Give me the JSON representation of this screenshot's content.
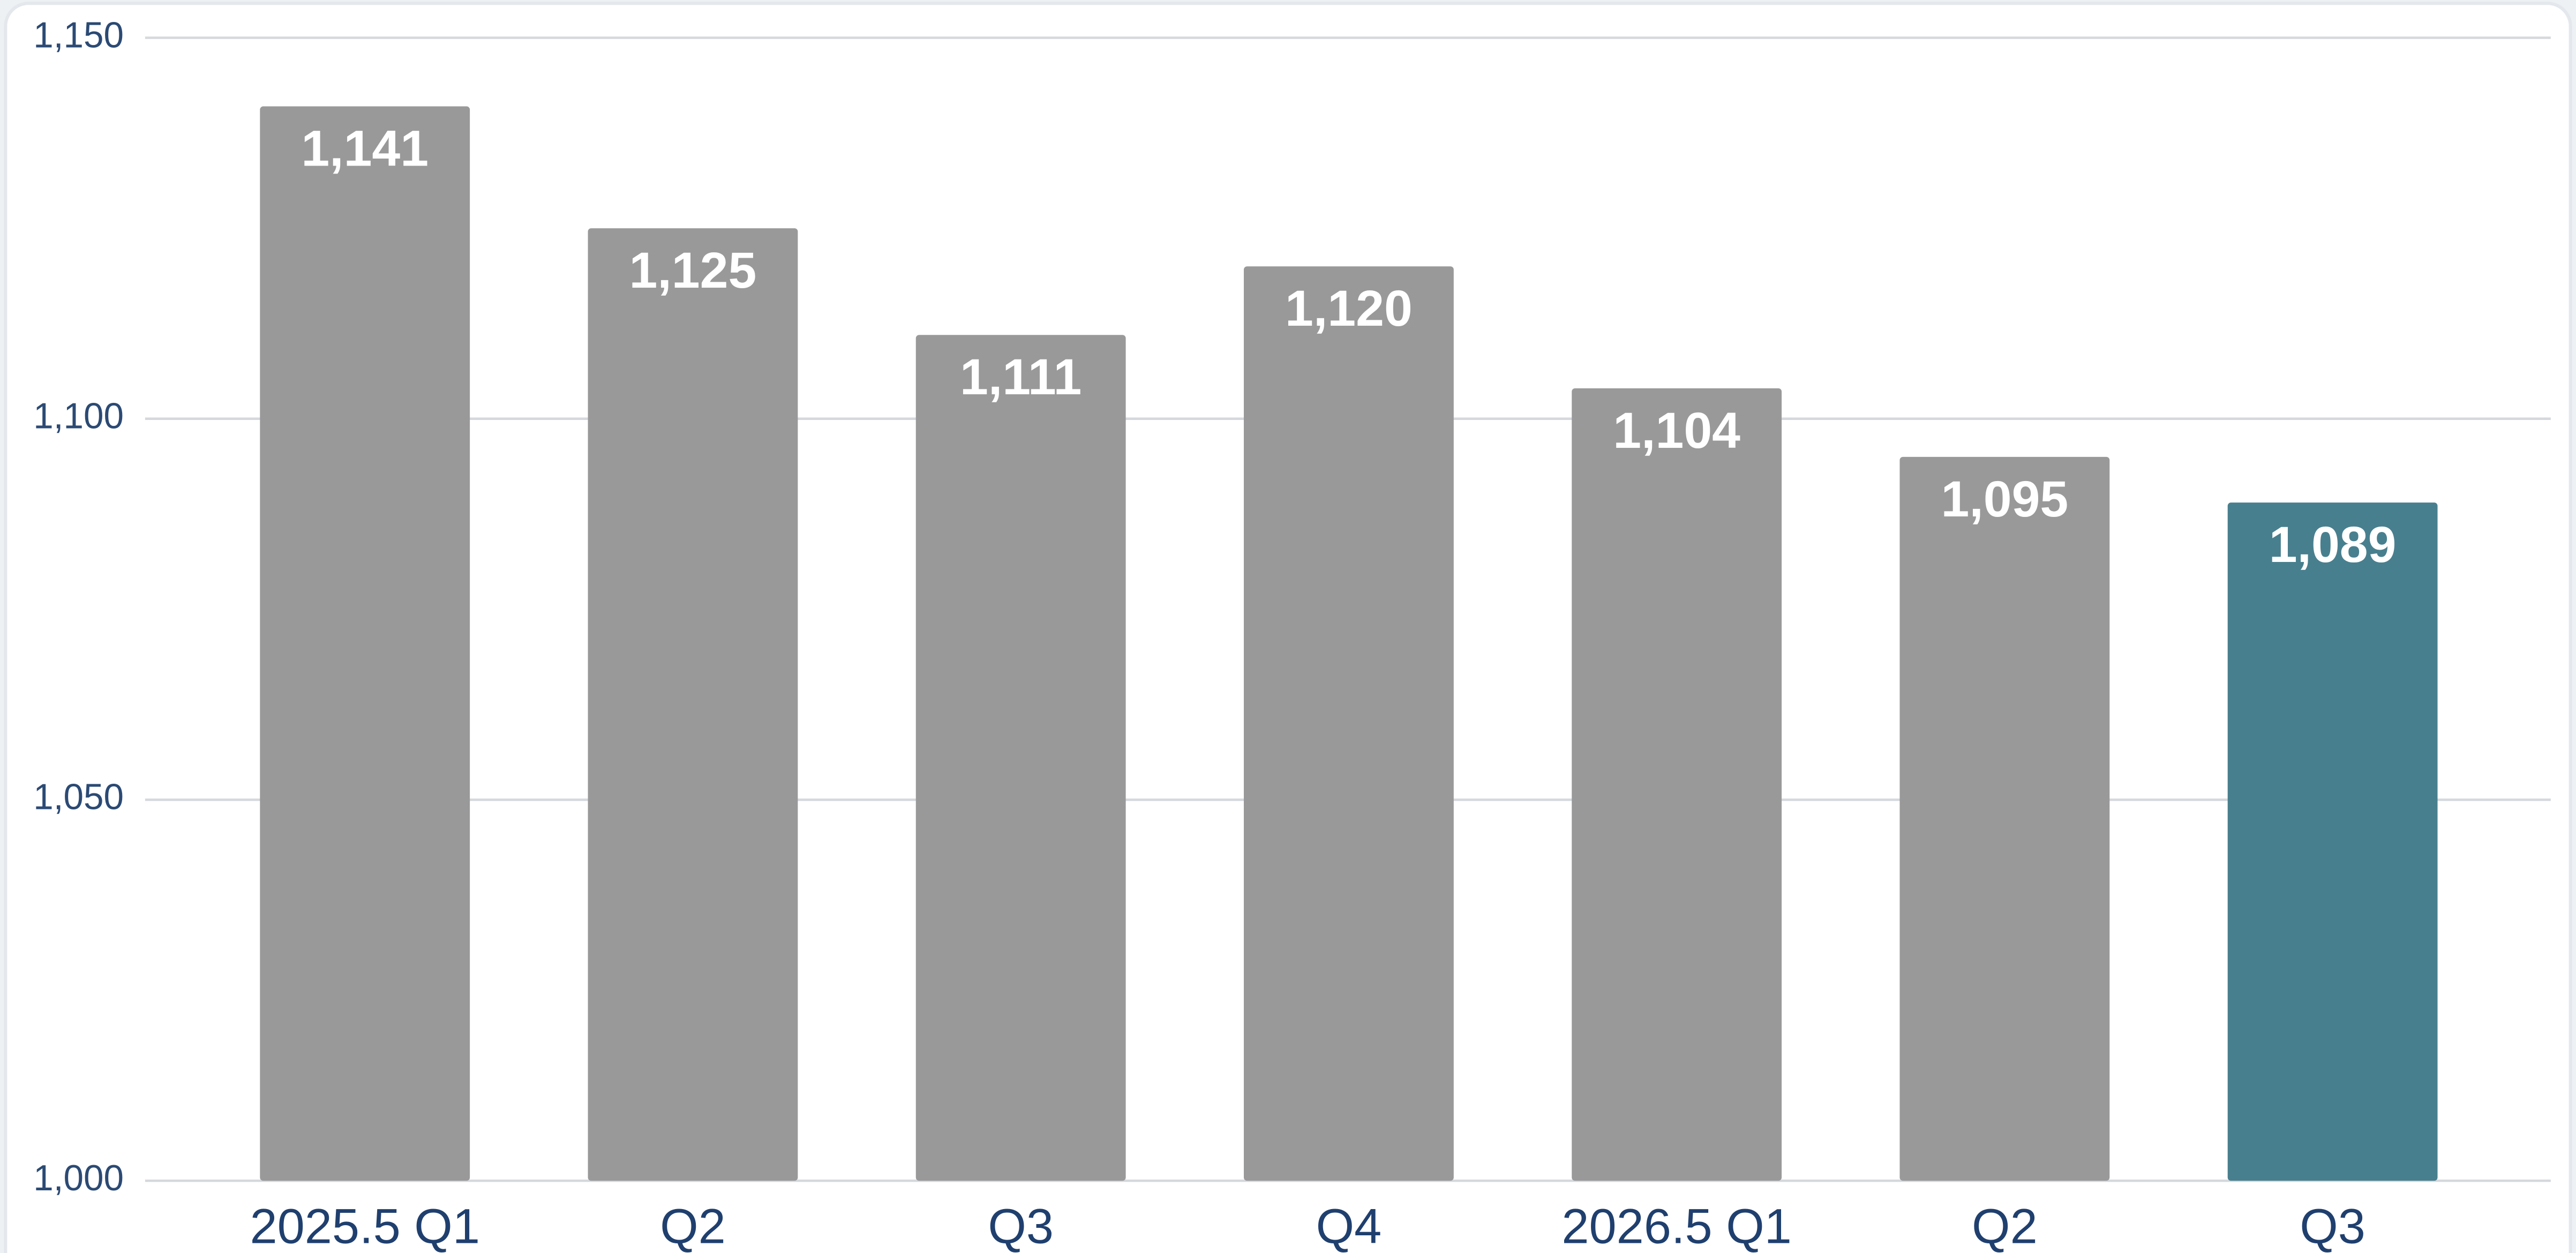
{
  "chart_data": {
    "type": "bar",
    "categories": [
      "2025.5 Q1",
      "Q2",
      "Q3",
      "Q4",
      "2026.5 Q1",
      "Q2",
      "Q3"
    ],
    "values": [
      1141,
      1125,
      1111,
      1120,
      1104,
      1095,
      1089
    ],
    "value_labels": [
      "1,141",
      "1,125",
      "1,111",
      "1,120",
      "1,104",
      "1,095",
      "1,089"
    ],
    "colors": [
      "#999999",
      "#999999",
      "#999999",
      "#999999",
      "#999999",
      "#999999",
      "#487f8e"
    ],
    "ylim": [
      1000,
      1150
    ],
    "yticks": [
      {
        "value": 1000,
        "label": "1,000"
      },
      {
        "value": 1050,
        "label": "1,050"
      },
      {
        "value": 1100,
        "label": "1,100"
      },
      {
        "value": 1150,
        "label": "1,150"
      }
    ],
    "grid": true
  }
}
